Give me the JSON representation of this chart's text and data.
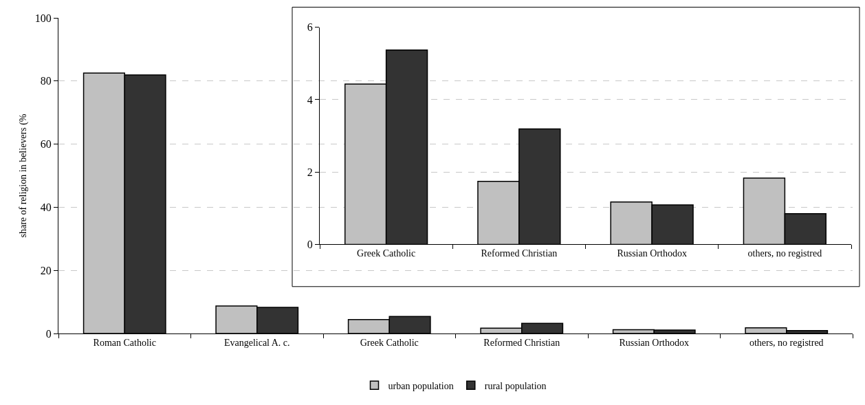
{
  "chart_data": [
    {
      "type": "bar",
      "ylabel": "share of religion in believers (%",
      "categories": [
        "Roman Catholic",
        "Evangelical A. c.",
        "Greek Catholic",
        "Reformed Christian",
        "Russian Orthodox",
        "others, no registred"
      ],
      "series": [
        {
          "name": "urban population",
          "color": "#c0c0c0",
          "values": [
            82.5,
            8.7,
            4.4,
            1.7,
            1.2,
            1.8
          ]
        },
        {
          "name": "rural population",
          "color": "#333333",
          "values": [
            81.9,
            8.3,
            5.4,
            3.2,
            1.1,
            0.9
          ]
        }
      ],
      "ylim": [
        0,
        100
      ],
      "yticks": [
        0,
        20,
        40,
        60,
        80,
        100
      ],
      "grid": "y",
      "legend": "bottom"
    },
    {
      "type": "bar",
      "categories": [
        "Greek Catholic",
        "Reformed Christian",
        "Russian Orthodox",
        "others, no registred"
      ],
      "series": [
        {
          "color": "#c0c0c0",
          "values": [
            4.43,
            1.74,
            1.17,
            1.83
          ]
        },
        {
          "color": "#333333",
          "values": [
            5.37,
            3.19,
            1.09,
            0.85
          ]
        }
      ],
      "ylim": [
        0,
        6
      ],
      "yticks": [
        0,
        2,
        4,
        6
      ],
      "grid": "y"
    }
  ]
}
